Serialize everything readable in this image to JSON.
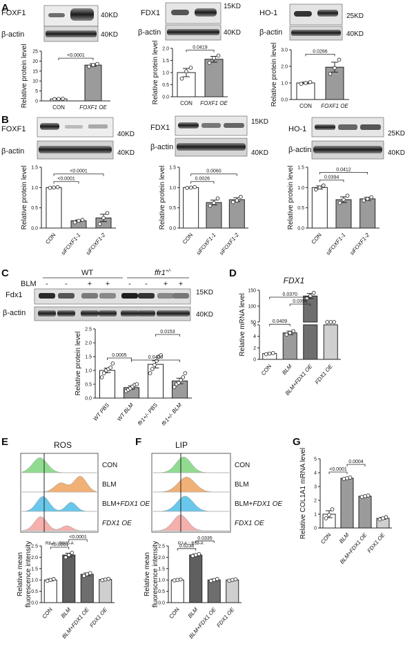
{
  "panel_labels": [
    "A",
    "B",
    "C",
    "D",
    "E",
    "F",
    "G"
  ],
  "labels": {
    "kd15": "15KD",
    "kd25": "25KD",
    "kd40": "40KD",
    "bactin": "β-actin",
    "bactin_cut": "β-actin",
    "foxf1": "FOXF1",
    "fdx1": "FDX1",
    "ho1": "HO-1",
    "fdx1_m": "Fdx1",
    "wt": "WT",
    "ffr1": "ffr1",
    "ffr1_sup": "+/-",
    "blm": "BLM",
    "minus": "-",
    "plus": "+",
    "rel_protein": "Relative protein level",
    "rel_mrna_fdx1": "Relative mRNA level",
    "rel_mrna_col1": "Relative COL1A1 mRNA level",
    "rel_fluor_1": "Relative mean",
    "rel_fluor_2": "fluorescence intensity",
    "fdx1_title": "FDX1",
    "ros": "ROS",
    "lip": "LIP",
    "ros_axis": "R8-A :: BS25-A",
    "lip_axis": "PJ-A :: BS8-A"
  },
  "hist_labels": [
    "CON",
    "BLM",
    "BLM+FDX1 OE",
    "FDX1 OE"
  ],
  "hist_colors": [
    "#84d884",
    "#f0a868",
    "#58c2e8",
    "#f4a8a4"
  ],
  "colors": {
    "white": "#ffffff",
    "light": "#cfcfcf",
    "mid": "#9b9b9b",
    "dark": "#6e6e6e",
    "darker": "#5f5f5f"
  },
  "chart_data": [
    {
      "id": "A1",
      "type": "bar",
      "ylabel": "Relative protein level",
      "ylim": [
        0,
        25
      ],
      "yticks": [
        0,
        5,
        10,
        15,
        20,
        25
      ],
      "categories": [
        "CON",
        "FOXF1 OE"
      ],
      "values": [
        1.0,
        18.0
      ],
      "err": [
        0.2,
        0.7
      ],
      "points": [
        [
          0.9,
          1.0,
          1.1
        ],
        [
          17.2,
          18.1,
          18.6
        ]
      ],
      "comparisons": [
        {
          "a": 0,
          "b": 1,
          "text": "<0.0001"
        }
      ]
    },
    {
      "id": "A2",
      "type": "bar",
      "ylabel": "Relative protein level",
      "ylim": [
        0,
        2.0
      ],
      "yticks": [
        0,
        0.5,
        1.0,
        1.5,
        2.0
      ],
      "categories": [
        "CON",
        "FOXF1 OE"
      ],
      "values": [
        1.0,
        1.55
      ],
      "err": [
        0.17,
        0.12
      ],
      "points": [
        [
          0.75,
          1.05,
          1.2
        ],
        [
          1.4,
          1.6,
          1.7
        ]
      ],
      "comparisons": [
        {
          "a": 0,
          "b": 1,
          "text": "0.0419"
        }
      ]
    },
    {
      "id": "A3",
      "type": "bar",
      "ylabel": "Relative protein level",
      "ylim": [
        0,
        3
      ],
      "yticks": [
        0,
        1,
        2,
        3
      ],
      "categories": [
        "CON",
        "FOXF1 OE"
      ],
      "values": [
        1.0,
        1.95
      ],
      "err": [
        0.05,
        0.3
      ],
      "points": [
        [
          0.95,
          1.0,
          1.05
        ],
        [
          1.55,
          1.9,
          2.4
        ]
      ],
      "comparisons": [
        {
          "a": 0,
          "b": 1,
          "text": "0.0266"
        }
      ]
    },
    {
      "id": "B1",
      "type": "bar",
      "ylabel": "Relative protein level",
      "ylim": [
        0,
        1.5
      ],
      "yticks": [
        0,
        0.5,
        1.0,
        1.5
      ],
      "categories": [
        "CON",
        "siFOXF1-1",
        "siFOXF1-2"
      ],
      "values": [
        1.0,
        0.18,
        0.25
      ],
      "err": [
        0.01,
        0.02,
        0.09
      ],
      "points": [
        [
          0.99,
          1.0,
          1.01
        ],
        [
          0.14,
          0.18,
          0.2
        ],
        [
          0.1,
          0.25,
          0.37
        ]
      ],
      "comparisons": [
        {
          "a": 0,
          "b": 1,
          "text": "<0.0001"
        },
        {
          "a": 0,
          "b": 2,
          "text": "<0.0001"
        }
      ]
    },
    {
      "id": "B2",
      "type": "bar",
      "ylabel": "Relative protein level",
      "ylim": [
        0,
        1.5
      ],
      "yticks": [
        0,
        0.5,
        1.0,
        1.5
      ],
      "categories": [
        "CON",
        "siFOXF1-1",
        "siFOXF1-2"
      ],
      "values": [
        1.0,
        0.63,
        0.7
      ],
      "err": [
        0.01,
        0.06,
        0.05
      ],
      "points": [
        [
          0.99,
          1.0,
          1.01
        ],
        [
          0.55,
          0.62,
          0.73
        ],
        [
          0.64,
          0.68,
          0.77
        ]
      ],
      "comparisons": [
        {
          "a": 0,
          "b": 1,
          "text": "0.0026"
        },
        {
          "a": 0,
          "b": 2,
          "text": "0.0060"
        }
      ]
    },
    {
      "id": "B3",
      "type": "bar",
      "ylabel": "Relative protein level",
      "ylim": [
        0,
        1.5
      ],
      "yticks": [
        0,
        0.5,
        1.0,
        1.5
      ],
      "categories": [
        "CON",
        "siFOXF1-1",
        "siFOXF1-2"
      ],
      "values": [
        1.0,
        0.7,
        0.72
      ],
      "err": [
        0.04,
        0.07,
        0.04
      ],
      "points": [
        [
          0.95,
          1.0,
          1.05
        ],
        [
          0.62,
          0.7,
          0.8
        ],
        [
          0.68,
          0.72,
          0.76
        ]
      ],
      "comparisons": [
        {
          "a": 0,
          "b": 1,
          "text": "0.0394"
        },
        {
          "a": 0,
          "b": 2,
          "text": "0.0412"
        }
      ]
    },
    {
      "id": "C",
      "type": "bar",
      "ylabel": "Relative protein level",
      "ylim": [
        0,
        2.5
      ],
      "yticks": [
        0,
        0.5,
        1.0,
        1.5,
        2.0,
        2.5
      ],
      "categories": [
        "WT PBS",
        "WT BLM",
        "ffr1+/- PBS",
        "ffr1+/- BLM"
      ],
      "values": [
        1.0,
        0.38,
        1.22,
        0.62
      ],
      "err": [
        0.08,
        0.06,
        0.13,
        0.1
      ],
      "points": [
        [
          0.75,
          0.9,
          1.0,
          1.05,
          1.1,
          1.25
        ],
        [
          0.25,
          0.3,
          0.35,
          0.42,
          0.48,
          0.5
        ],
        [
          0.9,
          1.05,
          1.2,
          1.35,
          1.5,
          1.55
        ],
        [
          0.4,
          0.5,
          0.55,
          0.65,
          0.75,
          0.9
        ]
      ],
      "comparisons": [
        {
          "a": 0,
          "b": 1,
          "text": "0.0005"
        },
        {
          "a": 1,
          "b": 3,
          "text": "0.0433"
        },
        {
          "a": 2,
          "b": 3,
          "text": "0.0153"
        }
      ]
    },
    {
      "id": "D",
      "type": "bar",
      "title": "FDX1",
      "ylabel": "Relative mRNA level",
      "broken_axis": true,
      "lower_ylim": [
        0,
        6
      ],
      "lower_yticks": [
        0,
        2,
        4,
        6
      ],
      "upper_ylim": [
        50,
        150
      ],
      "upper_yticks": [
        50,
        100,
        150
      ],
      "categories": [
        "CON",
        "BLM",
        "BLM+FDX1 OE",
        "FDX1 OE"
      ],
      "values": [
        1.0,
        4.6,
        132,
        7.3
      ],
      "err": [
        0.1,
        0.3,
        8,
        0.2
      ],
      "points": [
        [
          0.9,
          1.0,
          1.1
        ],
        [
          4.3,
          4.6,
          4.9
        ],
        [
          125,
          132,
          142
        ],
        [
          7.1,
          7.3,
          7.5
        ]
      ],
      "comparisons": [
        {
          "a": 0,
          "b": 1,
          "text": "0.0409"
        },
        {
          "a": 1,
          "b": 2,
          "text": "0.0396"
        },
        {
          "a": 0,
          "b": 2,
          "text": "0.0370"
        }
      ]
    },
    {
      "id": "E",
      "type": "bar",
      "ylabel": "Relative mean fluorescence intensity",
      "ylim": [
        0,
        2.5
      ],
      "yticks": [
        0,
        0.5,
        1.0,
        1.5,
        2.0,
        2.5
      ],
      "categories": [
        "CON",
        "BLM",
        "BLM+FDX1 OE",
        "FDX1 OE"
      ],
      "values": [
        1.0,
        2.1,
        1.25,
        1.02
      ],
      "err": [
        0.04,
        0.08,
        0.06,
        0.03
      ],
      "points": [
        [
          0.96,
          1.0,
          1.04
        ],
        [
          2.0,
          2.1,
          2.2
        ],
        [
          1.18,
          1.25,
          1.3
        ],
        [
          0.99,
          1.02,
          1.05
        ]
      ],
      "comparisons": [
        {
          "a": 0,
          "b": 1,
          "text": "<0.0001"
        },
        {
          "a": 1,
          "b": 2,
          "text": "<0.0001"
        }
      ]
    },
    {
      "id": "F",
      "type": "bar",
      "ylabel": "Relative mean fluorescence intensity",
      "ylim": [
        0,
        2.5
      ],
      "yticks": [
        0,
        0.5,
        1.0,
        1.5,
        2.0,
        2.5
      ],
      "categories": [
        "CON",
        "BLM",
        "BLM+FDX1 OE",
        "FDX1 OE"
      ],
      "values": [
        1.0,
        2.1,
        1.0,
        1.0
      ],
      "err": [
        0.02,
        0.04,
        0.04,
        0.03
      ],
      "points": [
        [
          0.98,
          1.0,
          1.02
        ],
        [
          2.06,
          2.1,
          2.14
        ],
        [
          0.96,
          1.0,
          1.04
        ],
        [
          0.97,
          1.0,
          1.03
        ]
      ],
      "comparisons": [
        {
          "a": 0,
          "b": 1,
          "text": "0.0238"
        },
        {
          "a": 1,
          "b": 2,
          "text": "0.0335"
        }
      ]
    },
    {
      "id": "G",
      "type": "bar",
      "ylabel": "Relative COL1A1 mRNA level",
      "ylim": [
        0,
        5
      ],
      "yticks": [
        0,
        1,
        2,
        3,
        4,
        5
      ],
      "categories": [
        "CON",
        "BLM",
        "BLM+FDX1 OE",
        "FDX1 OE"
      ],
      "values": [
        1.0,
        3.6,
        2.3,
        0.7
      ],
      "err": [
        0.25,
        0.05,
        0.05,
        0.06
      ],
      "points": [
        [
          0.7,
          0.95,
          1.35
        ],
        [
          3.55,
          3.6,
          3.65
        ],
        [
          2.25,
          2.3,
          2.35
        ],
        [
          0.62,
          0.7,
          0.78
        ]
      ],
      "comparisons": [
        {
          "a": 0,
          "b": 1,
          "text": "<0.0001"
        },
        {
          "a": 1,
          "b": 2,
          "text": "0.0004"
        }
      ]
    }
  ]
}
